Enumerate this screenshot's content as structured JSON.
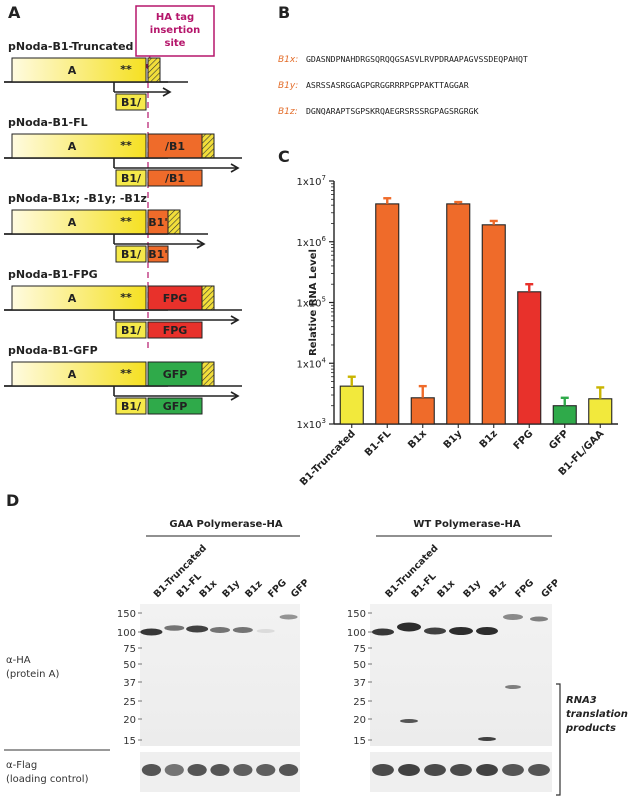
{
  "panels": {
    "a": "A",
    "b": "B",
    "c": "C",
    "d": "D"
  },
  "panel_a": {
    "ha_callout": [
      "HA tag",
      "insertion",
      "site"
    ],
    "segment_a": "A",
    "stars": "**",
    "constructs": [
      {
        "title": "pNoda-B1-Truncated",
        "fusion": "",
        "fusion_color": "",
        "sub_left": "B1/",
        "sub_right": "",
        "sub_right_color": ""
      },
      {
        "title": "pNoda-B1-FL",
        "fusion": "/B1",
        "fusion_color": "#ef6b2a",
        "sub_left": "B1/",
        "sub_right": "/B1",
        "sub_right_color": "#ef6b2a"
      },
      {
        "title": "pNoda-B1x; -B1y; -B1z",
        "fusion": "B1'",
        "fusion_color": "#ef6b2a",
        "sub_left": "B1/",
        "sub_right": "B1'",
        "sub_right_color": "#ef6b2a"
      },
      {
        "title": "pNoda-B1-FPG",
        "fusion": "FPG",
        "fusion_color": "#e8312b",
        "sub_left": "B1/",
        "sub_right": "FPG",
        "sub_right_color": "#e8312b"
      },
      {
        "title": "pNoda-B1-GFP",
        "fusion": "GFP",
        "fusion_color": "#2faa4a",
        "sub_left": "B1/",
        "sub_right": "GFP",
        "sub_right_color": "#2faa4a"
      }
    ]
  },
  "panel_b": {
    "sequences": [
      {
        "label": "B1x:",
        "seq": "GDASNDPNAHDRGSQRQQGSASVLRVPDRAAPAGVSSDEQPAHQT"
      },
      {
        "label": "B1y:",
        "seq": "ASRSSASRGGAGPGRGGRRRPGPPAKTTAGGAR"
      },
      {
        "label": "B1z:",
        "seq": "DGNQARAPTSGPSKRQAEGRSRSSRGPAGSRGRGK"
      }
    ]
  },
  "chart_data": {
    "type": "bar",
    "title": "",
    "xlabel": "",
    "ylabel": "Relative RNA Level",
    "y_scale": "log",
    "ylim": [
      1000,
      10000000
    ],
    "y_tick_labels": [
      "1x10^3",
      "1x10^4",
      "1x10^5",
      "1x10^6",
      "1x10^7"
    ],
    "categories": [
      "B1-Truncated",
      "B1-FL",
      "B1x",
      "B1y",
      "B1z",
      "FPG",
      "GFP",
      "B1-FL/GAA"
    ],
    "values": [
      4200,
      4200000,
      2700,
      4200000,
      1900000,
      150000,
      2000,
      2600
    ],
    "errors_upper": [
      6000,
      5200000,
      4200,
      4500000,
      2200000,
      200000,
      2700,
      4000
    ],
    "colors": [
      "#f2e93c",
      "#ef6b2a",
      "#ef6b2a",
      "#ef6b2a",
      "#ef6b2a",
      "#e8312b",
      "#2faa4a",
      "#f2e93c"
    ],
    "grid": false,
    "legend": "none"
  },
  "panel_d": {
    "left_title": "GAA Polymerase-HA",
    "right_title": "WT Polymerase-HA",
    "left_lanes": [
      "B1-Truncated",
      "B1-FL",
      "B1x",
      "B1y",
      "B1z",
      "FPG",
      "GFP"
    ],
    "right_lanes": [
      "B1-Truncated",
      "B1-FL",
      "B1x",
      "B1y",
      "B1z",
      "FPG",
      "GFP"
    ],
    "mw_markers": [
      "150",
      "100",
      "75",
      "50",
      "37",
      "25",
      "20",
      "15"
    ],
    "ha_label": [
      "α-HA",
      "(protein A)"
    ],
    "flag_label": [
      "α-Flag",
      "(loading control)"
    ],
    "rna3_label": [
      "RNA3",
      "translation",
      "products"
    ]
  }
}
